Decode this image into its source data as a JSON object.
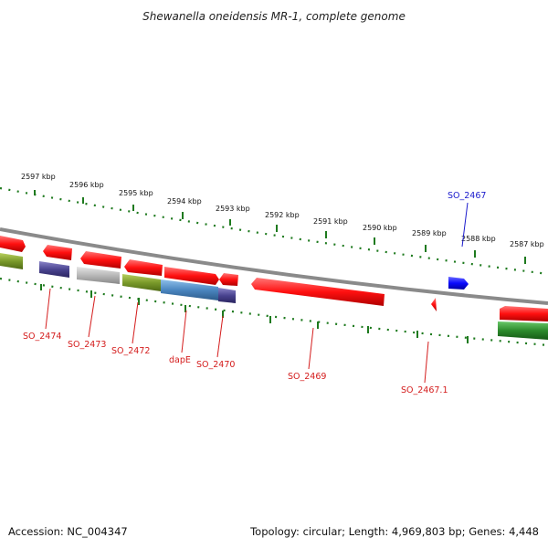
{
  "title": "Shewanella oneidensis MR-1, complete genome",
  "footer": {
    "accession": "Accession: NC_004347",
    "summary": "Topology: circular; Length: 4,969,803 bp; Genes: 4,448"
  },
  "colors": {
    "backbone": "#8a8a8a",
    "tick": "#1e7a1e",
    "gene_label_red": "#d41c1c",
    "gene_label_blue": "#1a1acc",
    "red": "#ff1010",
    "blue": "#0a0aff",
    "navy": "#4a4490",
    "gray": "#b8b8b8",
    "olive": "#7a9a2a",
    "steel": "#4a86c0",
    "green": "#2c8a2c"
  },
  "scale_labels": [
    "2597 kbp",
    "2596 kbp",
    "2595 kbp",
    "2594 kbp",
    "2593 kbp",
    "2592 kbp",
    "2591 kbp",
    "2590 kbp",
    "2589 kbp",
    "2588 kbp",
    "2587 kbp"
  ],
  "gene_labels": [
    {
      "text": "SO_2474",
      "color": "gene_label_red"
    },
    {
      "text": "SO_2473",
      "color": "gene_label_red"
    },
    {
      "text": "SO_2472",
      "color": "gene_label_red"
    },
    {
      "text": "dapE",
      "color": "gene_label_red"
    },
    {
      "text": "SO_2470",
      "color": "gene_label_red"
    },
    {
      "text": "SO_2469",
      "color": "gene_label_red"
    },
    {
      "text": "SO_2467.1",
      "color": "gene_label_red"
    },
    {
      "text": "SO_2467",
      "color": "gene_label_blue"
    }
  ]
}
